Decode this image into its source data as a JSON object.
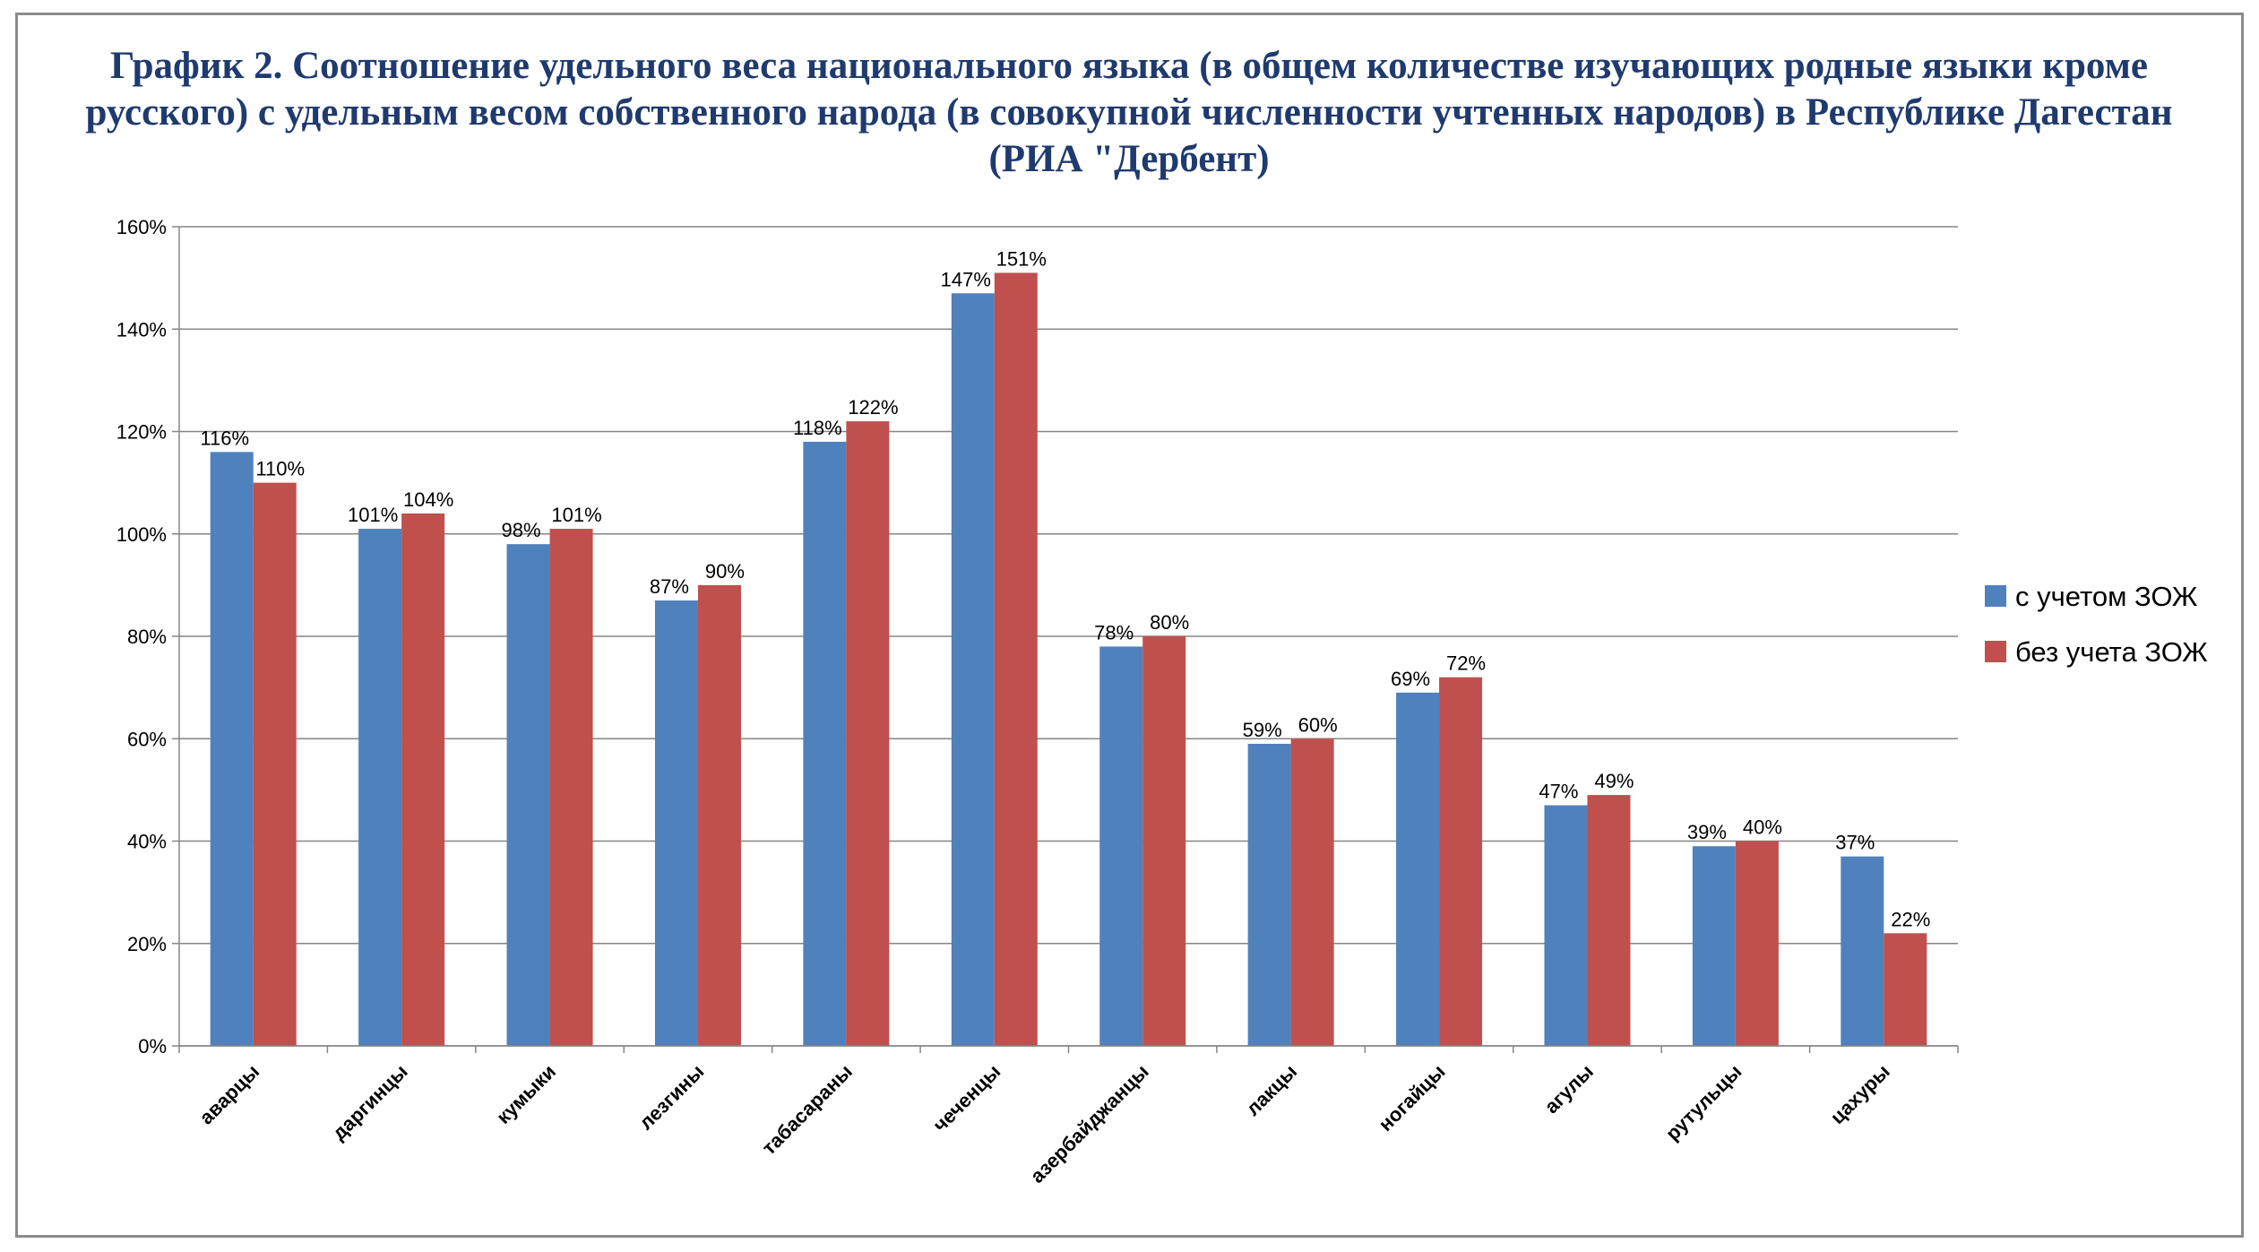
{
  "chart_data": {
    "type": "bar",
    "title": "График 2. Соотношение удельного веса национального языка (в общем количестве изучающих родные языки кроме русского) с удельным весом собственного народа (в совокупной численности учтенных народов) в Республике Дагестан (РИА \"Дербент)",
    "categories": [
      "аварцы",
      "даргинцы",
      "кумыки",
      "лезгины",
      "табасараны",
      "чеченцы",
      "азербайджанцы",
      "лакцы",
      "ногайцы",
      "агулы",
      "рутульцы",
      "цахуры"
    ],
    "series": [
      {
        "name": "с учетом ЗОЖ",
        "color": "#4f81bd",
        "values": [
          116,
          101,
          98,
          87,
          118,
          147,
          78,
          59,
          69,
          47,
          39,
          37
        ],
        "labels": [
          "116%",
          "101%",
          "98%",
          "87%",
          "118%",
          "147%",
          "78%",
          "59%",
          "69%",
          "47%",
          "39%",
          "37%"
        ]
      },
      {
        "name": "без учета ЗОЖ",
        "color": "#c0504d",
        "values": [
          110,
          104,
          101,
          90,
          122,
          151,
          80,
          60,
          72,
          49,
          40,
          22
        ],
        "labels": [
          "110%",
          "104%",
          "101%",
          "90%",
          "122%",
          "151%",
          "80%",
          "60%",
          "72%",
          "49%",
          "40%",
          "22%"
        ]
      }
    ],
    "ylim": [
      0,
      160
    ],
    "yticks": [
      "0%",
      "20%",
      "40%",
      "60%",
      "80%",
      "100%",
      "120%",
      "140%",
      "160%"
    ],
    "grid": true,
    "legend_position": "right"
  }
}
